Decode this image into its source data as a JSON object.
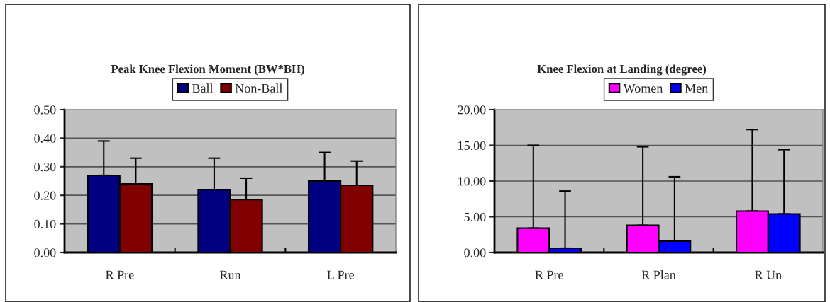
{
  "chart_data": [
    {
      "type": "bar",
      "title": "Peak Knee Flexion Moment (BW*BH)",
      "categories": [
        "R Pre",
        "Run",
        "L Pre"
      ],
      "series": [
        {
          "name": "Ball",
          "color": "#000080",
          "values": [
            0.27,
            0.22,
            0.25
          ],
          "errors": [
            [
              0.27,
              0.39
            ],
            [
              0.22,
              0.33
            ],
            [
              0.25,
              0.35
            ]
          ]
        },
        {
          "name": "Non-Ball",
          "color": "#800000",
          "values": [
            0.24,
            0.185,
            0.235
          ],
          "errors": [
            [
              0.24,
              0.33
            ],
            [
              0.185,
              0.26
            ],
            [
              0.235,
              0.32
            ]
          ]
        }
      ],
      "ylim": [
        0,
        0.5
      ],
      "yticks": [
        {
          "value": 0,
          "label": "0.00"
        },
        {
          "value": 0.1,
          "label": "0.10"
        },
        {
          "value": 0.2,
          "label": "0.20"
        },
        {
          "value": 0.3,
          "label": "0.30"
        },
        {
          "value": 0.4,
          "label": "0.40"
        },
        {
          "value": 0.5,
          "label": "0.50"
        }
      ],
      "grid": "y",
      "legend": "top"
    },
    {
      "type": "bar",
      "title": "Knee Flexion at Landing (degree)",
      "categories": [
        "R Pre",
        "R Plan",
        "R Un"
      ],
      "series": [
        {
          "name": "Women",
          "color": "#ff00ff",
          "values": [
            3.4,
            3.8,
            5.8
          ],
          "errors": [
            [
              3.4,
              15.0
            ],
            [
              3.8,
              14.8
            ],
            [
              5.8,
              17.2
            ]
          ]
        },
        {
          "name": "Men",
          "color": "#0000ff",
          "values": [
            0.6,
            1.6,
            5.4
          ],
          "errors": [
            [
              0.6,
              8.6
            ],
            [
              1.6,
              10.6
            ],
            [
              5.4,
              14.4
            ]
          ]
        }
      ],
      "ylim": [
        0,
        20
      ],
      "yticks": [
        {
          "value": 0,
          "label": "0.00"
        },
        {
          "value": 5,
          "label": "5.00"
        },
        {
          "value": 10,
          "label": "10.00"
        },
        {
          "value": 15,
          "label": "15.00"
        },
        {
          "value": 20,
          "label": "20.00"
        }
      ],
      "grid": "y",
      "legend": "top"
    }
  ]
}
